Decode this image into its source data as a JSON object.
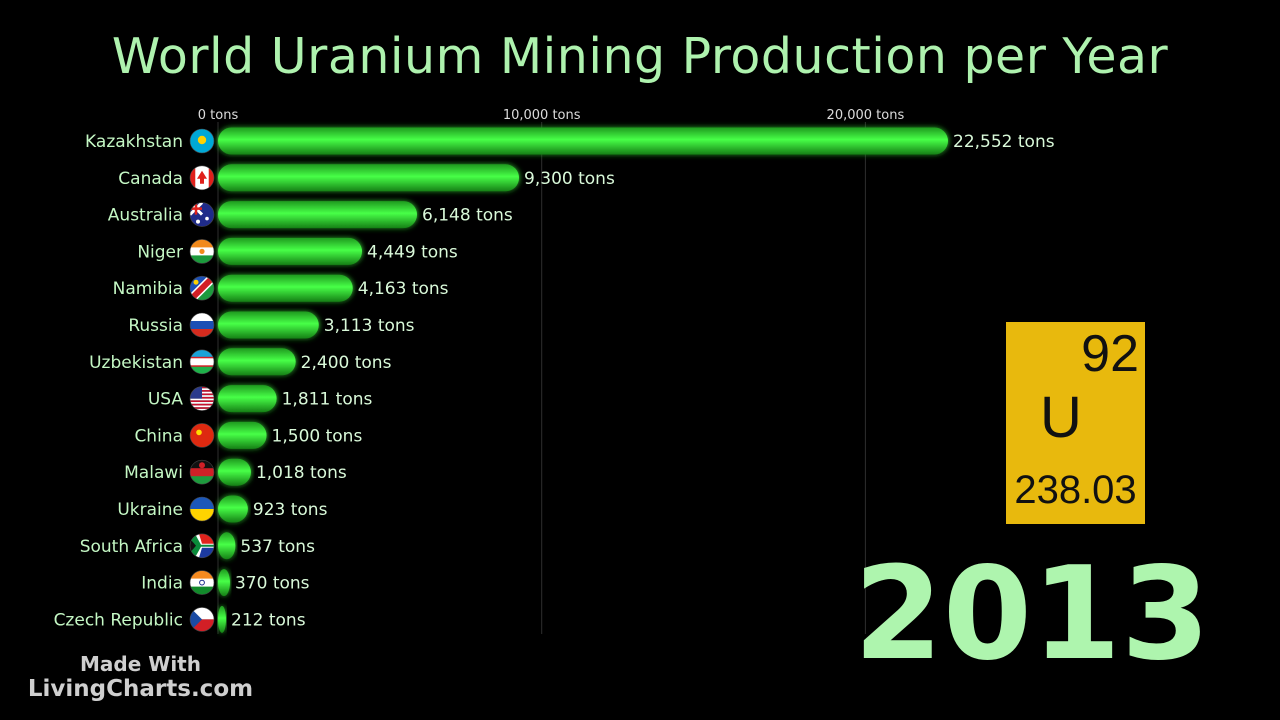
{
  "chart_data": {
    "type": "bar",
    "orientation": "horizontal",
    "title": "World Uranium Mining Production per Year",
    "x_ticks": [
      {
        "value": 0,
        "label": "0 tons"
      },
      {
        "value": 10000,
        "label": "10,000 tons"
      },
      {
        "value": 20000,
        "label": "20,000 tons"
      }
    ],
    "xlim": [
      0,
      22552
    ],
    "grid": true,
    "bar_color": "#2fd12f",
    "categories": [
      "Kazakhstan",
      "Canada",
      "Australia",
      "Niger",
      "Namibia",
      "Russia",
      "Uzbekistan",
      "USA",
      "China",
      "Malawi",
      "Ukraine",
      "South Africa",
      "India",
      "Czech Republic"
    ],
    "values": [
      22552,
      9300,
      6148,
      4449,
      4163,
      3113,
      2400,
      1811,
      1500,
      1018,
      923,
      537,
      370,
      212
    ],
    "value_labels": [
      "22,552 tons",
      "9,300 tons",
      "6,148 tons",
      "4,449 tons",
      "4,163 tons",
      "3,113 tons",
      "2,400 tons",
      "1,811 tons",
      "1,500 tons",
      "1,018 tons",
      "923 tons",
      "537 tons",
      "370 tons",
      "212 tons"
    ],
    "flags": [
      "kazakhstan-flag-icon",
      "canada-flag-icon",
      "australia-flag-icon",
      "niger-flag-icon",
      "namibia-flag-icon",
      "russia-flag-icon",
      "uzbekistan-flag-icon",
      "usa-flag-icon",
      "china-flag-icon",
      "malawi-flag-icon",
      "ukraine-flag-icon",
      "south-africa-flag-icon",
      "india-flag-icon",
      "czech-republic-flag-icon"
    ]
  },
  "element": {
    "number": "92",
    "symbol": "U",
    "mass": "238.03",
    "color": "#e8b90d"
  },
  "year": "2013",
  "watermark": {
    "line1": "Made With",
    "line2": "LivingCharts.com"
  }
}
